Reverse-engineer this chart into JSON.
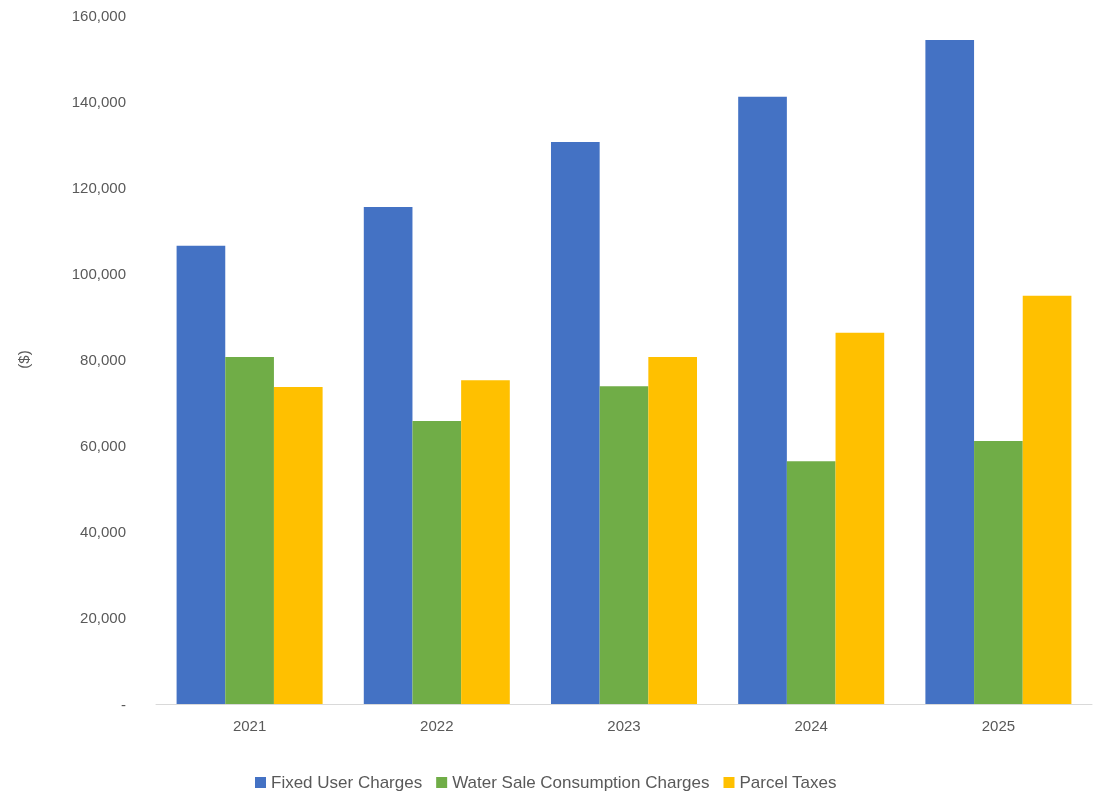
{
  "chart_data": {
    "type": "bar",
    "ylabel": "($)",
    "categories": [
      "2021",
      "2022",
      "2023",
      "2024",
      "2025"
    ],
    "series": [
      {
        "name": "Fixed User Charges",
        "color": "#4472c4",
        "values": [
          106400,
          115400,
          130500,
          141000,
          154200
        ]
      },
      {
        "name": "Water Sale Consumption Charges",
        "color": "#70ad47",
        "values": [
          80600,
          65700,
          73800,
          56400,
          61100
        ]
      },
      {
        "name": "Parcel Taxes",
        "color": "#ffc000",
        "values": [
          73600,
          75200,
          80600,
          86200,
          94800
        ]
      }
    ],
    "ylim": [
      0,
      160000
    ],
    "yticks": [
      {
        "value": 0,
        "label": "-"
      },
      {
        "value": 20000,
        "label": "20,000"
      },
      {
        "value": 40000,
        "label": "40,000"
      },
      {
        "value": 60000,
        "label": "60,000"
      },
      {
        "value": 80000,
        "label": "80,000"
      },
      {
        "value": 100000,
        "label": "100,000"
      },
      {
        "value": 120000,
        "label": "120,000"
      },
      {
        "value": 140000,
        "label": "140,000"
      },
      {
        "value": 160000,
        "label": "160,000"
      }
    ],
    "grid": false,
    "legend": "bottom"
  }
}
